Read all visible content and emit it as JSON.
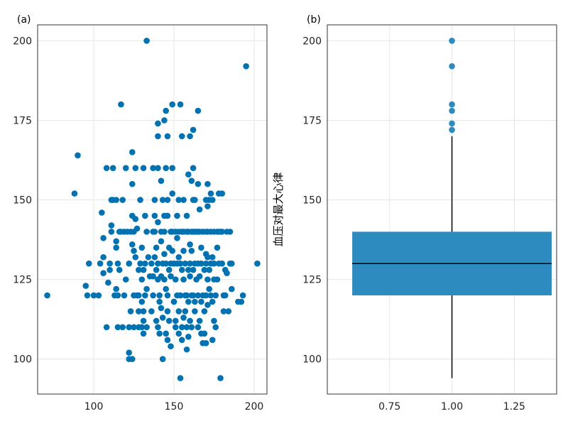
{
  "chart_data": [
    {
      "panel_label": "(a)",
      "type": "scatter",
      "title": "",
      "xlabel": "",
      "ylabel": "",
      "xlim": [
        65,
        208
      ],
      "ylim": [
        89,
        205
      ],
      "xticks": [
        100,
        150,
        200
      ],
      "yticks": [
        100,
        125,
        150,
        175,
        200
      ],
      "grid": true,
      "color": "#0072B2",
      "points": [
        [
          71,
          120
        ],
        [
          88,
          152
        ],
        [
          90,
          164
        ],
        [
          95,
          123
        ],
        [
          96,
          120
        ],
        [
          97,
          130
        ],
        [
          100,
          120
        ],
        [
          103,
          120
        ],
        [
          104,
          130
        ],
        [
          105,
          146
        ],
        [
          106,
          132
        ],
        [
          106,
          127
        ],
        [
          106,
          138
        ],
        [
          108,
          110
        ],
        [
          108,
          160
        ],
        [
          109,
          124
        ],
        [
          110,
          130
        ],
        [
          110,
          128
        ],
        [
          111,
          150
        ],
        [
          111,
          142
        ],
        [
          111,
          140
        ],
        [
          112,
          160
        ],
        [
          112,
          150
        ],
        [
          113,
          120
        ],
        [
          114,
          150
        ],
        [
          114,
          137
        ],
        [
          114,
          135
        ],
        [
          114,
          122
        ],
        [
          115,
          110
        ],
        [
          115,
          130
        ],
        [
          115,
          120
        ],
        [
          116,
          128
        ],
        [
          116,
          140
        ],
        [
          117,
          180
        ],
        [
          117,
          140
        ],
        [
          118,
          150
        ],
        [
          118,
          110
        ],
        [
          119,
          120
        ],
        [
          119,
          140
        ],
        [
          120,
          160
        ],
        [
          120,
          125
        ],
        [
          121,
          140
        ],
        [
          122,
          102
        ],
        [
          122,
          100
        ],
        [
          122,
          130
        ],
        [
          122,
          110
        ],
        [
          123,
          115
        ],
        [
          123,
          140
        ],
        [
          124,
          165
        ],
        [
          124,
          155
        ],
        [
          124,
          145
        ],
        [
          124,
          136
        ],
        [
          124,
          100
        ],
        [
          125,
          140
        ],
        [
          125,
          134
        ],
        [
          125,
          110
        ],
        [
          125,
          120
        ],
        [
          126,
          160
        ],
        [
          126,
          144
        ],
        [
          126,
          132
        ],
        [
          127,
          141
        ],
        [
          127,
          120
        ],
        [
          128,
          115
        ],
        [
          128,
          110
        ],
        [
          128,
          120
        ],
        [
          128,
          128
        ],
        [
          129,
          150
        ],
        [
          129,
          130
        ],
        [
          130,
          125
        ],
        [
          130,
          110
        ],
        [
          130,
          118
        ],
        [
          130,
          135
        ],
        [
          131,
          128
        ],
        [
          131,
          108
        ],
        [
          131,
          112
        ],
        [
          131,
          115
        ],
        [
          131,
          160
        ],
        [
          132,
          145
        ],
        [
          132,
          130
        ],
        [
          132,
          120
        ],
        [
          133,
          200
        ],
        [
          133,
          140
        ],
        [
          133,
          122
        ],
        [
          133,
          110
        ],
        [
          134,
          132
        ],
        [
          135,
          126
        ],
        [
          136,
          130
        ],
        [
          136,
          115
        ],
        [
          137,
          160
        ],
        [
          137,
          140
        ],
        [
          137,
          120
        ],
        [
          137,
          126
        ],
        [
          138,
          150
        ],
        [
          138,
          145
        ],
        [
          138,
          140
        ],
        [
          138,
          132
        ],
        [
          139,
          135
        ],
        [
          139,
          128
        ],
        [
          139,
          112
        ],
        [
          140,
          174
        ],
        [
          140,
          170
        ],
        [
          140,
          160
        ],
        [
          140,
          143
        ],
        [
          140,
          130
        ],
        [
          140,
          125
        ],
        [
          140,
          110
        ],
        [
          141,
          120
        ],
        [
          141,
          118
        ],
        [
          141,
          108
        ],
        [
          142,
          156
        ],
        [
          142,
          140
        ],
        [
          142,
          137
        ],
        [
          142,
          126
        ],
        [
          142,
          116
        ],
        [
          143,
          130
        ],
        [
          143,
          150
        ],
        [
          143,
          100
        ],
        [
          143,
          113
        ],
        [
          144,
          145
        ],
        [
          144,
          175
        ],
        [
          144,
          140
        ],
        [
          144,
          133
        ],
        [
          144,
          125
        ],
        [
          145,
          178
        ],
        [
          145,
          160
        ],
        [
          145,
          130
        ],
        [
          145,
          122
        ],
        [
          145,
          108
        ],
        [
          146,
          170
        ],
        [
          146,
          150
        ],
        [
          146,
          145
        ],
        [
          146,
          120
        ],
        [
          146,
          115
        ],
        [
          146,
          106
        ],
        [
          147,
          135
        ],
        [
          147,
          128
        ],
        [
          147,
          112
        ],
        [
          148,
          140
        ],
        [
          148,
          130
        ],
        [
          148,
          126
        ],
        [
          148,
          104
        ],
        [
          149,
          180
        ],
        [
          149,
          160
        ],
        [
          149,
          152
        ],
        [
          149,
          140
        ],
        [
          149,
          134
        ],
        [
          150,
          130
        ],
        [
          150,
          118
        ],
        [
          150,
          118
        ],
        [
          151,
          140
        ],
        [
          151,
          125
        ],
        [
          151,
          112
        ],
        [
          151,
          110
        ],
        [
          152,
          145
        ],
        [
          152,
          138
        ],
        [
          152,
          130
        ],
        [
          152,
          120
        ],
        [
          153,
          150
        ],
        [
          153,
          140
        ],
        [
          153,
          132
        ],
        [
          153,
          115
        ],
        [
          153,
          108
        ],
        [
          154,
          94
        ],
        [
          154,
          180
        ],
        [
          154,
          130
        ],
        [
          154,
          120
        ],
        [
          155,
          170
        ],
        [
          155,
          140
        ],
        [
          155,
          128
        ],
        [
          155,
          110
        ],
        [
          155,
          106
        ],
        [
          156,
          150
        ],
        [
          156,
          140
        ],
        [
          156,
          134
        ],
        [
          156,
          125
        ],
        [
          156,
          113
        ],
        [
          157,
          130
        ],
        [
          157,
          120
        ],
        [
          157,
          115
        ],
        [
          158,
          145
        ],
        [
          158,
          140
        ],
        [
          158,
          120
        ],
        [
          158,
          110
        ],
        [
          158,
          103
        ],
        [
          159,
          158
        ],
        [
          159,
          140
        ],
        [
          159,
          128
        ],
        [
          159,
          118
        ],
        [
          159,
          107
        ],
        [
          160,
          170
        ],
        [
          160,
          136
        ],
        [
          160,
          130
        ],
        [
          160,
          126
        ],
        [
          160,
          112
        ],
        [
          161,
          156
        ],
        [
          161,
          140
        ],
        [
          161,
          134
        ],
        [
          161,
          120
        ],
        [
          161,
          110
        ],
        [
          162,
          172
        ],
        [
          162,
          160
        ],
        [
          162,
          150
        ],
        [
          162,
          140
        ],
        [
          162,
          128
        ],
        [
          162,
          120
        ],
        [
          163,
          150
        ],
        [
          163,
          140
        ],
        [
          163,
          130
        ],
        [
          163,
          118
        ],
        [
          163,
          115
        ],
        [
          164,
          140
        ],
        [
          164,
          125
        ],
        [
          165,
          178
        ],
        [
          165,
          155
        ],
        [
          165,
          140
        ],
        [
          165,
          130
        ],
        [
          165,
          120
        ],
        [
          165,
          110
        ],
        [
          166,
          147
        ],
        [
          166,
          140
        ],
        [
          166,
          126
        ],
        [
          166,
          112
        ],
        [
          167,
          135
        ],
        [
          167,
          130
        ],
        [
          167,
          108
        ],
        [
          167,
          118
        ],
        [
          168,
          140
        ],
        [
          168,
          120
        ],
        [
          168,
          105
        ],
        [
          169,
          128
        ],
        [
          169,
          115
        ],
        [
          169,
          108
        ],
        [
          170,
          150
        ],
        [
          170,
          140
        ],
        [
          170,
          133
        ],
        [
          170,
          130
        ],
        [
          170,
          120
        ],
        [
          170,
          105
        ],
        [
          171,
          155
        ],
        [
          171,
          148
        ],
        [
          171,
          140
        ],
        [
          171,
          132
        ],
        [
          171,
          125
        ],
        [
          171,
          117
        ],
        [
          172,
          150
        ],
        [
          172,
          128
        ],
        [
          172,
          122
        ],
        [
          173,
          152
        ],
        [
          173,
          140
        ],
        [
          173,
          130
        ],
        [
          173,
          120
        ],
        [
          174,
          150
        ],
        [
          174,
          132
        ],
        [
          174,
          118
        ],
        [
          174,
          106
        ],
        [
          175,
          140
        ],
        [
          175,
          130
        ],
        [
          175,
          125
        ],
        [
          175,
          112
        ],
        [
          176,
          120
        ],
        [
          176,
          110
        ],
        [
          177,
          140
        ],
        [
          177,
          135
        ],
        [
          177,
          125
        ],
        [
          178,
          152
        ],
        [
          178,
          140
        ],
        [
          178,
          130
        ],
        [
          179,
          94
        ],
        [
          179,
          140
        ],
        [
          180,
          152
        ],
        [
          180,
          140
        ],
        [
          180,
          130
        ],
        [
          181,
          120
        ],
        [
          181,
          115
        ],
        [
          182,
          128
        ],
        [
          182,
          120
        ],
        [
          183,
          140
        ],
        [
          183,
          127
        ],
        [
          184,
          115
        ],
        [
          185,
          140
        ],
        [
          185,
          130
        ],
        [
          186,
          130
        ],
        [
          186,
          122
        ],
        [
          190,
          118
        ],
        [
          192,
          118
        ],
        [
          193,
          120
        ],
        [
          195,
          192
        ],
        [
          202,
          130
        ]
      ]
    },
    {
      "panel_label": "(b)",
      "type": "box",
      "title": "",
      "xlabel": "",
      "ylabel": "血压对最大心律",
      "xlim": [
        0.5,
        1.42
      ],
      "ylim": [
        89,
        205
      ],
      "xticks": [
        0.75,
        1.0,
        1.25
      ],
      "xtick_labels": [
        "0.75",
        "1.00",
        "1.25"
      ],
      "yticks": [
        100,
        125,
        150,
        175,
        200
      ],
      "grid": true,
      "color": "#2E8BC0",
      "box": {
        "x_center": 1.0,
        "x_width": 0.8,
        "whisker_low": 94,
        "q1": 120,
        "median": 130,
        "q3": 140,
        "whisker_high": 170,
        "outliers": [
          172,
          174,
          178,
          180,
          192,
          200
        ]
      }
    }
  ]
}
